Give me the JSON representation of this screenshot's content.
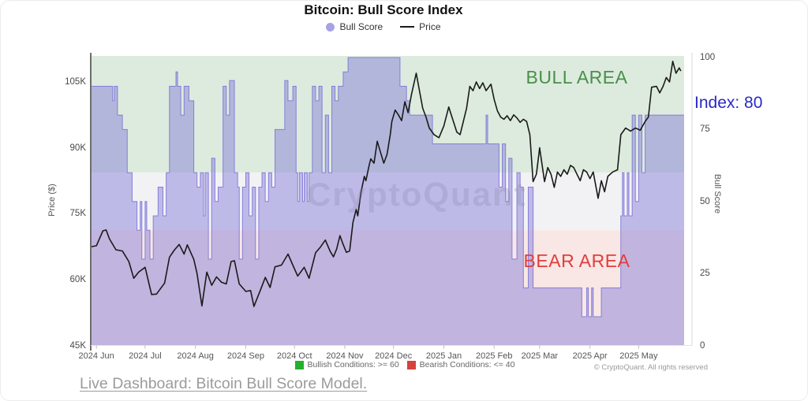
{
  "chart_data": {
    "type": "area+line",
    "title": "Bitcoin: Bull Score Index",
    "legend": [
      {
        "label": "Bull Score",
        "marker": "dot",
        "color": "#a7a2e2"
      },
      {
        "label": "Price",
        "marker": "line",
        "color": "#1a1a1a"
      }
    ],
    "x_axis": {
      "tick_labels": [
        "2024 Jun",
        "2024 Jul",
        "2024 Aug",
        "2024 Sep",
        "2024 Oct",
        "2024 Nov",
        "2024 Dec",
        "2025 Jan",
        "2025 Feb",
        "2025 Mar",
        "2025 Apr",
        "2025 May"
      ],
      "tick_days": [
        3,
        33,
        64,
        95,
        125,
        156,
        186,
        217,
        248,
        276,
        307,
        337
      ],
      "total_days": 365
    },
    "y_left": {
      "label": "Price ($)",
      "tick_labels": [
        "45K",
        "60K",
        "75K",
        "90K",
        "105K"
      ],
      "tick_values": [
        45,
        60,
        75,
        90,
        105
      ],
      "min": 45,
      "max": 111
    },
    "y_right": {
      "label": "Bull Score",
      "tick_values": [
        0,
        25,
        50,
        75,
        100
      ],
      "min": 0,
      "max": 100
    },
    "bands": {
      "bull_threshold": 60,
      "bear_threshold": 40,
      "bull_color": "#dcebdd",
      "neutral_color": "#f2f2f5",
      "bear_color": "#f8e7e4"
    },
    "annotations": {
      "bull_area": {
        "text": "BULL AREA",
        "color": "#4a8f4a"
      },
      "bear_area": {
        "text": "BEAR AREA",
        "color": "#e23d3d"
      },
      "index": {
        "text": "Index: 80",
        "value": 80,
        "color": "#2929c8"
      }
    },
    "watermark": "CryptoQuant",
    "series": {
      "bull_score": {
        "name": "Bull Score",
        "fill": "rgba(126,118,216,0.45)",
        "stroke": "rgba(126,118,216,0.9)",
        "points": [
          [
            0,
            90
          ],
          [
            13,
            85
          ],
          [
            14,
            90
          ],
          [
            16,
            80
          ],
          [
            19,
            75
          ],
          [
            22,
            60
          ],
          [
            25,
            50
          ],
          [
            28,
            40
          ],
          [
            30,
            50
          ],
          [
            31,
            30
          ],
          [
            33,
            50
          ],
          [
            34,
            40
          ],
          [
            36,
            30
          ],
          [
            38,
            45
          ],
          [
            41,
            55
          ],
          [
            44,
            45
          ],
          [
            46,
            60
          ],
          [
            48,
            90
          ],
          [
            52,
            95
          ],
          [
            53,
            90
          ],
          [
            55,
            80
          ],
          [
            57,
            90
          ],
          [
            60,
            85
          ],
          [
            63,
            60
          ],
          [
            65,
            55
          ],
          [
            67,
            60
          ],
          [
            69,
            45
          ],
          [
            70,
            60
          ],
          [
            72,
            30
          ],
          [
            74,
            65
          ],
          [
            76,
            50
          ],
          [
            78,
            55
          ],
          [
            81,
            90
          ],
          [
            83,
            80
          ],
          [
            85,
            92
          ],
          [
            88,
            60
          ],
          [
            90,
            55
          ],
          [
            91,
            30
          ],
          [
            93,
            55
          ],
          [
            95,
            60
          ],
          [
            97,
            45
          ],
          [
            99,
            55
          ],
          [
            101,
            30
          ],
          [
            103,
            55
          ],
          [
            105,
            60
          ],
          [
            107,
            50
          ],
          [
            109,
            60
          ],
          [
            111,
            55
          ],
          [
            113,
            75
          ],
          [
            117,
            75
          ],
          [
            119,
            92
          ],
          [
            121,
            85
          ],
          [
            124,
            90
          ],
          [
            126,
            60
          ],
          [
            127,
            50
          ],
          [
            128,
            60
          ],
          [
            130,
            50
          ],
          [
            131,
            60
          ],
          [
            133,
            50
          ],
          [
            134,
            60
          ],
          [
            136,
            90
          ],
          [
            138,
            85
          ],
          [
            140,
            90
          ],
          [
            142,
            60
          ],
          [
            144,
            80
          ],
          [
            146,
            60
          ],
          [
            148,
            90
          ],
          [
            150,
            85
          ],
          [
            152,
            90
          ],
          [
            155,
            95
          ],
          [
            158,
            100
          ],
          [
            190,
            90
          ],
          [
            194,
            85
          ],
          [
            196,
            80
          ],
          [
            210,
            70
          ],
          [
            243,
            80
          ],
          [
            244,
            70
          ],
          [
            251,
            55
          ],
          [
            253,
            70
          ],
          [
            255,
            50
          ],
          [
            257,
            65
          ],
          [
            259,
            30
          ],
          [
            262,
            60
          ],
          [
            264,
            55
          ],
          [
            266,
            20
          ],
          [
            269,
            55
          ],
          [
            272,
            20
          ],
          [
            302,
            10
          ],
          [
            305,
            20
          ],
          [
            306,
            10
          ],
          [
            308,
            20
          ],
          [
            309,
            10
          ],
          [
            314,
            20
          ],
          [
            326,
            45
          ],
          [
            327,
            60
          ],
          [
            328,
            45
          ],
          [
            330,
            60
          ],
          [
            331,
            45
          ],
          [
            333,
            80
          ],
          [
            335,
            50
          ],
          [
            337,
            80
          ],
          [
            339,
            60
          ],
          [
            341,
            80
          ],
          [
            365,
            80
          ]
        ]
      },
      "price": {
        "name": "Price",
        "color": "#1a1a1a",
        "unit": "K USD",
        "points": [
          [
            0,
            67.5
          ],
          [
            3,
            67.7
          ],
          [
            7,
            71.1
          ],
          [
            9,
            71.3
          ],
          [
            11,
            69.3
          ],
          [
            15,
            66.8
          ],
          [
            19,
            66.5
          ],
          [
            23,
            64.1
          ],
          [
            26,
            60.3
          ],
          [
            29,
            61.7
          ],
          [
            33,
            62.8
          ],
          [
            37,
            56.6
          ],
          [
            40,
            56.7
          ],
          [
            45,
            59.2
          ],
          [
            48,
            65.1
          ],
          [
            51,
            66.7
          ],
          [
            54,
            68.0
          ],
          [
            57,
            65.8
          ],
          [
            59,
            67.9
          ],
          [
            63,
            64.6
          ],
          [
            65,
            61.4
          ],
          [
            68,
            54.0
          ],
          [
            71,
            61.7
          ],
          [
            74,
            58.7
          ],
          [
            77,
            60.6
          ],
          [
            80,
            59.4
          ],
          [
            83,
            59.0
          ],
          [
            86,
            64.1
          ],
          [
            88,
            64.3
          ],
          [
            91,
            59.0
          ],
          [
            95,
            57.3
          ],
          [
            98,
            57.5
          ],
          [
            100,
            53.9
          ],
          [
            104,
            57.6
          ],
          [
            107,
            60.5
          ],
          [
            110,
            58.2
          ],
          [
            113,
            62.9
          ],
          [
            117,
            63.3
          ],
          [
            121,
            65.8
          ],
          [
            124,
            63.3
          ],
          [
            127,
            60.8
          ],
          [
            131,
            62.8
          ],
          [
            134,
            60.3
          ],
          [
            138,
            66.1
          ],
          [
            141,
            67.4
          ],
          [
            144,
            69.0
          ],
          [
            147,
            66.4
          ],
          [
            149,
            65.2
          ],
          [
            151,
            67.0
          ],
          [
            153,
            70.0
          ],
          [
            155,
            68.0
          ],
          [
            157,
            66.2
          ],
          [
            159,
            66.5
          ],
          [
            161,
            73.0
          ],
          [
            163,
            76.0
          ],
          [
            164,
            74.5
          ],
          [
            166,
            80.0
          ],
          [
            168,
            83.5
          ],
          [
            169,
            82.5
          ],
          [
            171,
            86.0
          ],
          [
            172,
            87.5
          ],
          [
            174,
            86.5
          ],
          [
            176,
            91.5
          ],
          [
            178,
            89.0
          ],
          [
            180,
            86.5
          ],
          [
            182,
            88.5
          ],
          [
            184,
            93.0
          ],
          [
            185,
            96.0
          ],
          [
            187,
            98.6
          ],
          [
            189,
            97.5
          ],
          [
            191,
            96.2
          ],
          [
            193,
            100.5
          ],
          [
            195,
            98.0
          ],
          [
            197,
            102.0
          ],
          [
            200,
            107.0
          ],
          [
            202,
            103.0
          ],
          [
            204,
            99.0
          ],
          [
            206,
            97.0
          ],
          [
            208,
            94.5
          ],
          [
            211,
            93.0
          ],
          [
            214,
            92.3
          ],
          [
            217,
            95.0
          ],
          [
            220,
            99.3
          ],
          [
            222,
            97.0
          ],
          [
            225,
            93.6
          ],
          [
            227,
            93.0
          ],
          [
            229,
            96.0
          ],
          [
            231,
            99.0
          ],
          [
            233,
            104.0
          ],
          [
            235,
            103.0
          ],
          [
            237,
            105.0
          ],
          [
            239,
            103.5
          ],
          [
            241,
            104.8
          ],
          [
            243,
            103.0
          ],
          [
            246,
            104.5
          ],
          [
            248,
            101.0
          ],
          [
            250,
            98.4
          ],
          [
            252,
            97.0
          ],
          [
            254,
            96.5
          ],
          [
            256,
            97.3
          ],
          [
            258,
            96.2
          ],
          [
            260,
            97.5
          ],
          [
            262,
            96.8
          ],
          [
            264,
            95.8
          ],
          [
            266,
            96.5
          ],
          [
            268,
            96.0
          ],
          [
            270,
            93.0
          ],
          [
            272,
            82.3
          ],
          [
            274,
            84.0
          ],
          [
            276,
            90.0
          ],
          [
            279,
            82.3
          ],
          [
            281,
            85.5
          ],
          [
            283,
            84.0
          ],
          [
            285,
            81.0
          ],
          [
            287,
            84.5
          ],
          [
            289,
            83.5
          ],
          [
            291,
            85.0
          ],
          [
            293,
            84.0
          ],
          [
            295,
            86.0
          ],
          [
            297,
            85.5
          ],
          [
            299,
            84.0
          ],
          [
            301,
            82.5
          ],
          [
            303,
            85.0
          ],
          [
            305,
            84.5
          ],
          [
            307,
            83.0
          ],
          [
            309,
            84.5
          ],
          [
            312,
            78.5
          ],
          [
            314,
            82.5
          ],
          [
            316,
            80.0
          ],
          [
            318,
            83.5
          ],
          [
            321,
            84.5
          ],
          [
            324,
            85.0
          ],
          [
            326,
            93.0
          ],
          [
            329,
            94.5
          ],
          [
            332,
            93.8
          ],
          [
            335,
            94.5
          ],
          [
            338,
            94.0
          ],
          [
            341,
            96.0
          ],
          [
            343,
            97.0
          ],
          [
            345,
            103.8
          ],
          [
            348,
            104.0
          ],
          [
            350,
            102.5
          ],
          [
            352,
            104.0
          ],
          [
            354,
            106.0
          ],
          [
            356,
            105.0
          ],
          [
            358,
            109.7
          ],
          [
            360,
            107.0
          ],
          [
            362,
            108.2
          ],
          [
            363,
            107.5
          ]
        ]
      }
    },
    "footnote_legend": [
      {
        "label": "Bullish Conditions: >= 60",
        "color": "#25b02c"
      },
      {
        "label": "Bearish Conditions: <= 40",
        "color": "#d6423c"
      }
    ],
    "copyright": "© CryptoQuant. All rights reserved"
  },
  "footer": {
    "link_text": "Live Dashboard: Bitcoin Bull Score Model."
  }
}
